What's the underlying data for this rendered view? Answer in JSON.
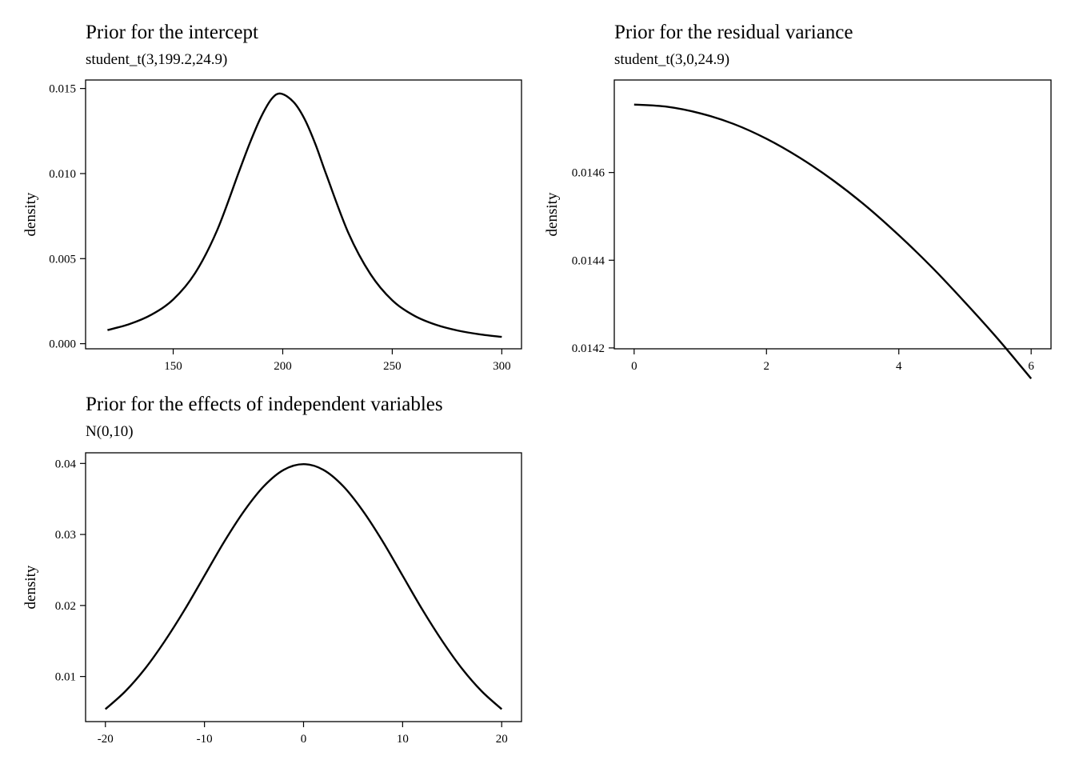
{
  "chart_data": [
    {
      "type": "line",
      "title": "Prior for the intercept",
      "subtitle": "student_t(3,199.2,24.9)",
      "xlabel": "",
      "ylabel": "density",
      "xlim": [
        110,
        309
      ],
      "ylim": [
        -0.0003,
        0.0155
      ],
      "xticks": [
        150,
        200,
        250,
        300
      ],
      "xtick_labels": [
        "150",
        "200",
        "250",
        "300"
      ],
      "yticks": [
        0,
        0.005,
        0.01,
        0.015
      ],
      "ytick_labels": [
        "0.000",
        "0.005",
        "0.010",
        "0.015"
      ],
      "grid": false,
      "series": [
        {
          "x": [
            120,
            130,
            140,
            150,
            160,
            170,
            180,
            185,
            190,
            195,
            199.2,
            205,
            210,
            215,
            220,
            230,
            240,
            250,
            260,
            270,
            280,
            290,
            300
          ],
          "y": [
            0.0008,
            0.00115,
            0.0017,
            0.0026,
            0.00415,
            0.00665,
            0.0101,
            0.0118,
            0.0133,
            0.0144,
            0.0147,
            0.0142,
            0.0132,
            0.0117,
            0.0099,
            0.0065,
            0.0041,
            0.00255,
            0.00165,
            0.00111,
            0.00077,
            0.00055,
            0.0004
          ]
        }
      ]
    },
    {
      "type": "line",
      "title": "Prior for the residual variance",
      "subtitle": "student_t(3,0,24.9)",
      "xlabel": "",
      "ylabel": "density",
      "xlim": [
        -0.3,
        6.3
      ],
      "ylim": [
        0.014198,
        0.014811
      ],
      "xticks": [
        0,
        2,
        4,
        6
      ],
      "xtick_labels": [
        "0",
        "2",
        "4",
        "6"
      ],
      "yticks": [
        0.0142,
        0.0144,
        0.0146
      ],
      "ytick_labels": [
        "0.0142",
        "0.0144",
        "0.0146"
      ],
      "grid": false,
      "series": [
        {
          "x": [
            0,
            0.5,
            1,
            1.5,
            2,
            2.5,
            3,
            3.5,
            4,
            4.5,
            5,
            5.5,
            6
          ],
          "y": [
            0.014755,
            0.01475,
            0.014735,
            0.014711,
            0.014677,
            0.014634,
            0.014583,
            0.014524,
            0.014457,
            0.014384,
            0.014304,
            0.01422,
            0.01413
          ]
        }
      ]
    },
    {
      "type": "line",
      "title": "Prior for the effects of independent variables",
      "subtitle": "N(0,10)",
      "xlabel": "",
      "ylabel": "density",
      "xlim": [
        -22,
        22
      ],
      "ylim": [
        0.00365,
        0.0415
      ],
      "xticks": [
        -20,
        -10,
        0,
        10,
        20
      ],
      "xtick_labels": [
        "-20",
        "-10",
        "0",
        "10",
        "20"
      ],
      "yticks": [
        0.01,
        0.02,
        0.03,
        0.04
      ],
      "ytick_labels": [
        "0.01",
        "0.02",
        "0.03",
        "0.04"
      ],
      "grid": false,
      "series": [
        {
          "x": [
            -20,
            -18,
            -16,
            -14,
            -12,
            -10,
            -8,
            -6,
            -4,
            -2,
            0,
            2,
            4,
            6,
            8,
            10,
            12,
            14,
            16,
            18,
            20
          ],
          "y": [
            0.0054,
            0.0079,
            0.0111,
            0.015,
            0.0194,
            0.0242,
            0.029,
            0.0333,
            0.0368,
            0.0391,
            0.0399,
            0.0391,
            0.0368,
            0.0333,
            0.029,
            0.0242,
            0.0194,
            0.015,
            0.0111,
            0.0079,
            0.0054
          ]
        }
      ]
    }
  ]
}
